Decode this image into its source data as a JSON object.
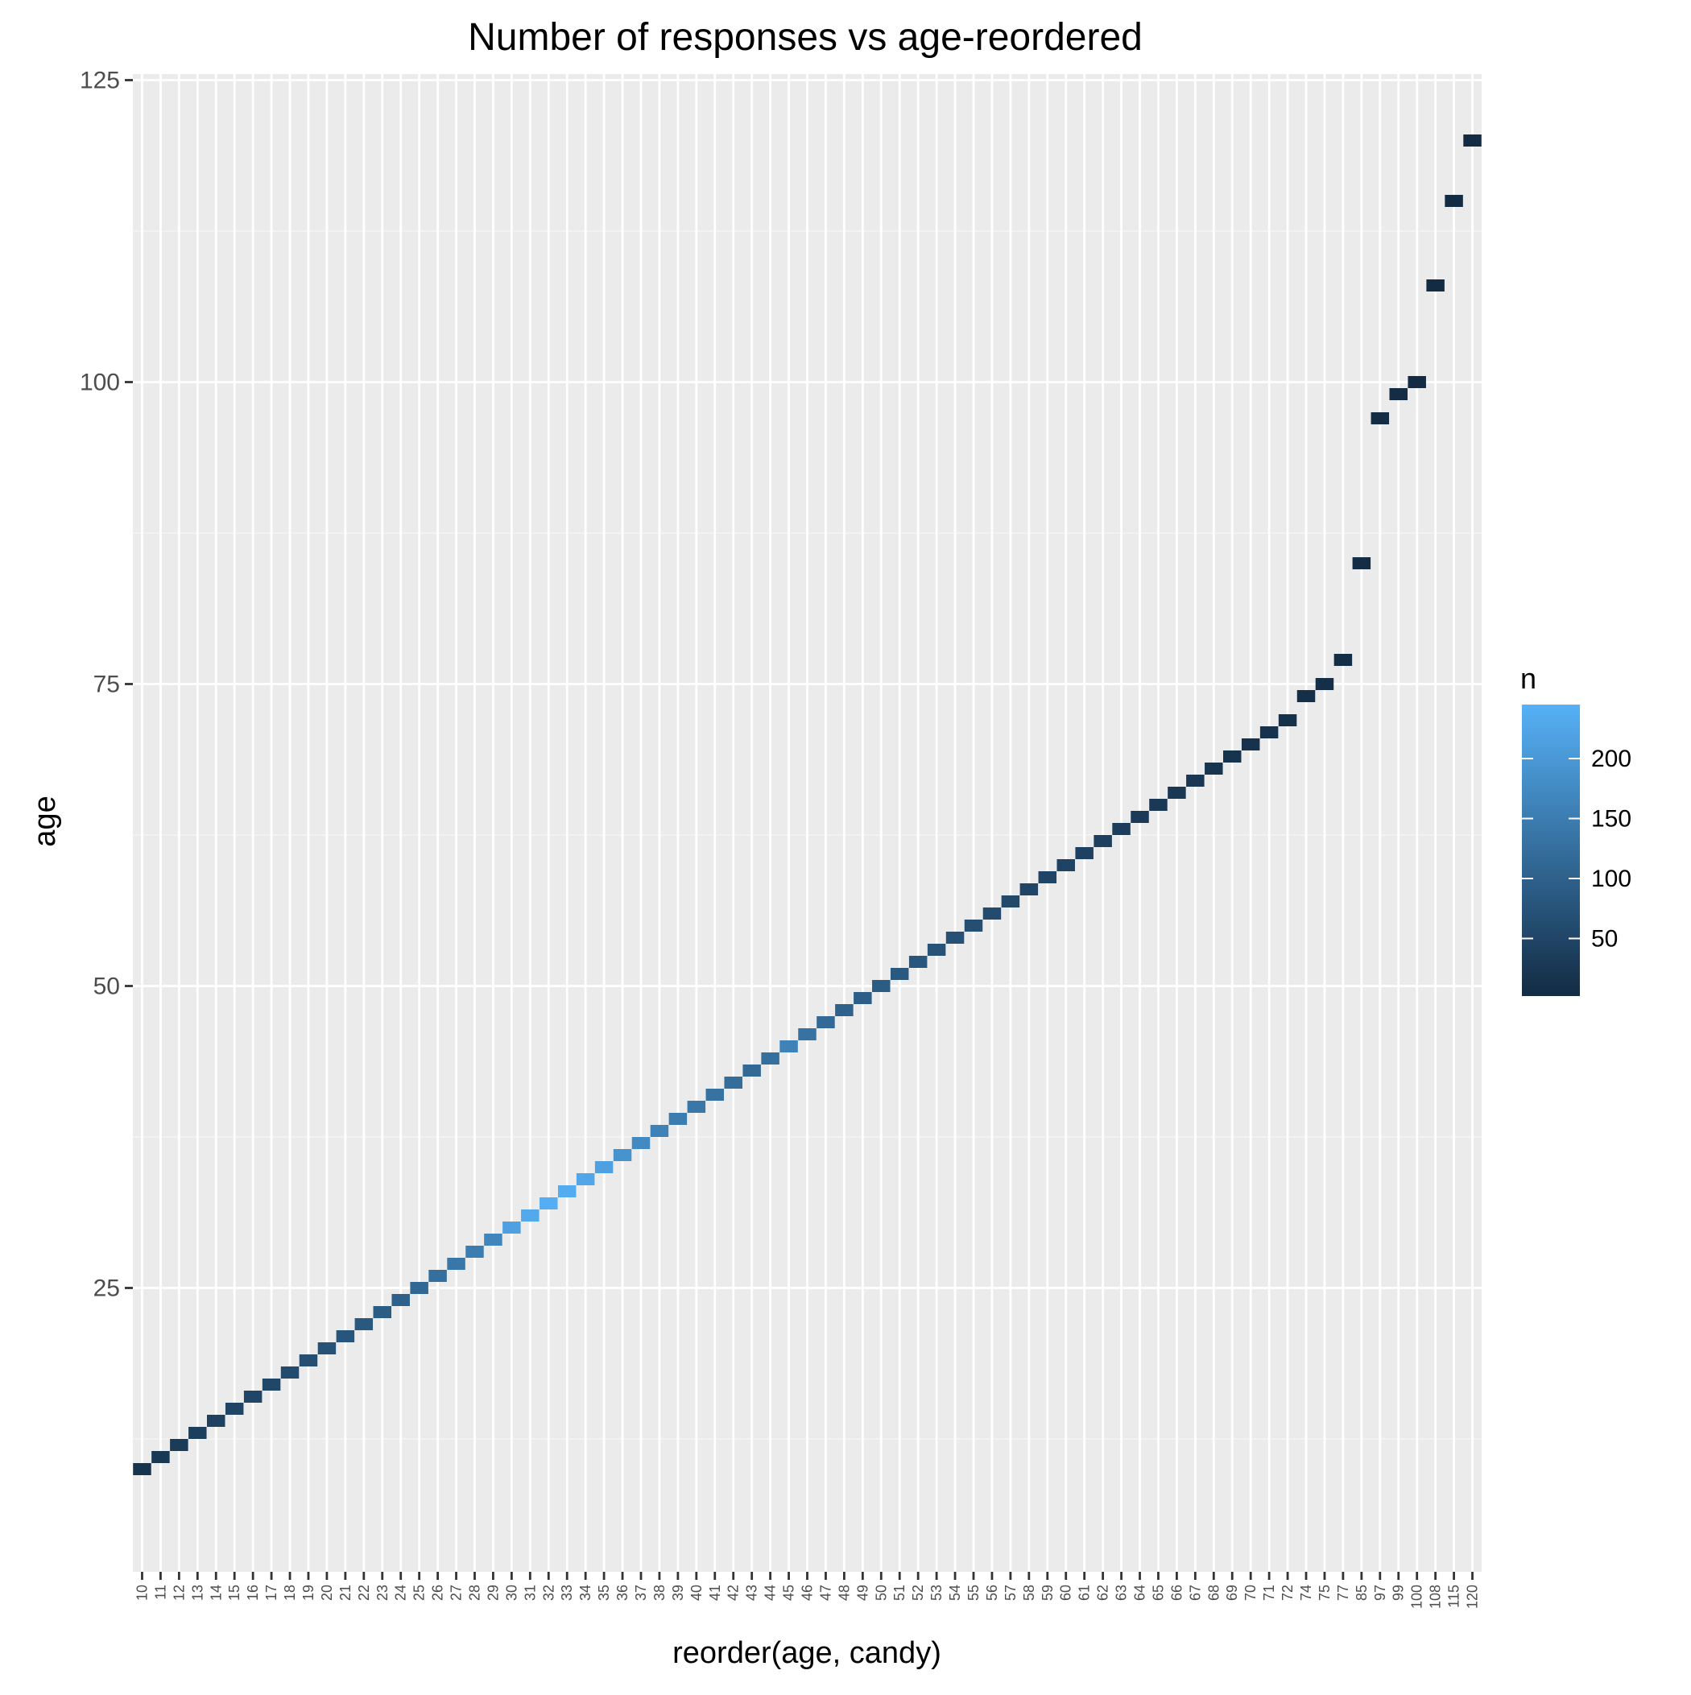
{
  "chart_data": {
    "type": "heatmap",
    "title": "Number of responses vs age-reordered",
    "xlabel": "reorder(age, candy)",
    "ylabel": "age",
    "x_categories": [
      "10",
      "11",
      "12",
      "13",
      "14",
      "15",
      "16",
      "17",
      "18",
      "19",
      "20",
      "21",
      "22",
      "23",
      "24",
      "25",
      "26",
      "27",
      "28",
      "29",
      "30",
      "31",
      "32",
      "33",
      "34",
      "35",
      "36",
      "37",
      "38",
      "39",
      "40",
      "41",
      "42",
      "43",
      "44",
      "45",
      "46",
      "47",
      "48",
      "49",
      "50",
      "51",
      "52",
      "53",
      "54",
      "55",
      "56",
      "57",
      "58",
      "59",
      "60",
      "61",
      "62",
      "63",
      "64",
      "65",
      "66",
      "67",
      "68",
      "69",
      "70",
      "71",
      "72",
      "74",
      "75",
      "77",
      "85",
      "97",
      "99",
      "100",
      "108",
      "115",
      "120"
    ],
    "y_values": [
      10,
      11,
      12,
      13,
      14,
      15,
      16,
      17,
      18,
      19,
      20,
      21,
      22,
      23,
      24,
      25,
      26,
      27,
      28,
      29,
      30,
      31,
      32,
      33,
      34,
      35,
      36,
      37,
      38,
      39,
      40,
      41,
      42,
      43,
      44,
      45,
      46,
      47,
      48,
      49,
      50,
      51,
      52,
      53,
      54,
      55,
      56,
      57,
      58,
      59,
      60,
      61,
      62,
      63,
      64,
      65,
      66,
      67,
      68,
      69,
      70,
      71,
      72,
      74,
      75,
      77,
      85,
      97,
      99,
      100,
      108,
      115,
      120
    ],
    "n_values": [
      18,
      25,
      32,
      38,
      42,
      48,
      50,
      52,
      60,
      65,
      72,
      78,
      85,
      90,
      98,
      110,
      125,
      140,
      150,
      165,
      215,
      230,
      240,
      235,
      225,
      215,
      190,
      175,
      160,
      150,
      140,
      130,
      120,
      115,
      125,
      160,
      130,
      115,
      100,
      95,
      90,
      85,
      80,
      75,
      70,
      65,
      60,
      55,
      50,
      48,
      45,
      42,
      40,
      35,
      30,
      28,
      25,
      22,
      20,
      18,
      15,
      14,
      12,
      10,
      9,
      8,
      5,
      4,
      4,
      3,
      3,
      2,
      2
    ],
    "ylim": [
      1.5,
      125.5
    ],
    "y_ticks": [
      25,
      50,
      75,
      100,
      125
    ],
    "grid": true,
    "legend": {
      "title": "n",
      "position": "right",
      "ticks": [
        50,
        100,
        150,
        200
      ],
      "range": [
        2,
        245
      ],
      "color_low": "#132B43",
      "color_high": "#56B1F7"
    }
  }
}
